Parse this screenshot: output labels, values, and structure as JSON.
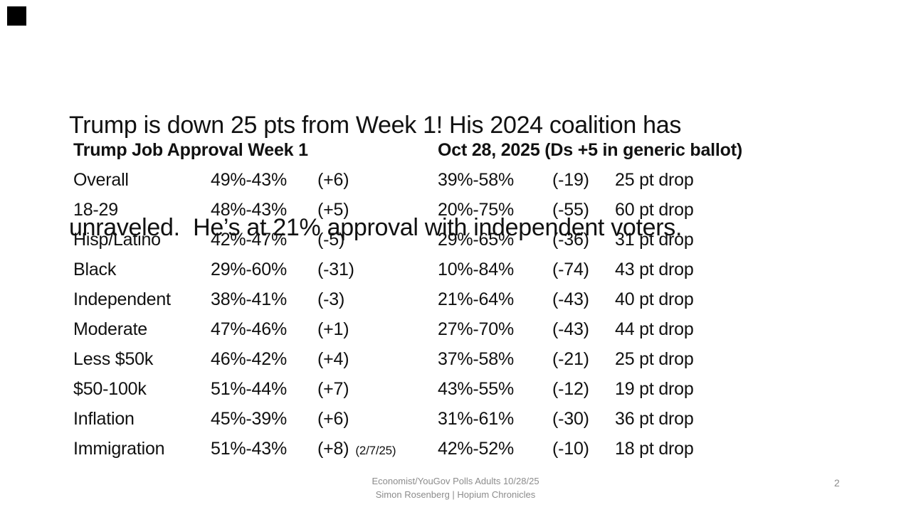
{
  "slide": {
    "title_line1": "Trump is down 25 pts from Week 1! His 2024 coalition has",
    "title_line2": "unraveled.  He’s at 21% approval with independent voters.",
    "footer_line1": "Economist/YouGov Polls Adults 10/28/25",
    "footer_line2": "Simon Rosenberg | Hopium Chronicles",
    "page_number": "2"
  },
  "table": {
    "header_left": "Trump Job Approval Week 1",
    "header_right": "Oct 28, 2025 (Ds +5 in generic ballot)",
    "rows": [
      {
        "label": "Overall",
        "week1": "49%-43%",
        "week1_margin": "(+6)",
        "week1_note": "",
        "oct28": "39%-58%",
        "oct28_margin": "(-19)",
        "drop": "25 pt drop"
      },
      {
        "label": "18-29",
        "week1": "48%-43%",
        "week1_margin": "(+5)",
        "week1_note": "",
        "oct28": "20%-75%",
        "oct28_margin": "(-55)",
        "drop": "60 pt drop"
      },
      {
        "label": "Hisp/Latino",
        "week1": "42%-47%",
        "week1_margin": "(-5)",
        "week1_note": "",
        "oct28": "29%-65%",
        "oct28_margin": "(-36)",
        "drop": "31 pt drop"
      },
      {
        "label": "Black",
        "week1": "29%-60%",
        "week1_margin": "(-31)",
        "week1_note": "",
        "oct28": "10%-84%",
        "oct28_margin": "(-74)",
        "drop": "43 pt drop"
      },
      {
        "label": "Independent",
        "week1": "38%-41%",
        "week1_margin": "(-3)",
        "week1_note": "",
        "oct28": "21%-64%",
        "oct28_margin": "(-43)",
        "drop": "40 pt drop"
      },
      {
        "label": "Moderate",
        "week1": "47%-46%",
        "week1_margin": "(+1)",
        "week1_note": "",
        "oct28": "27%-70%",
        "oct28_margin": "(-43)",
        "drop": "44 pt drop"
      },
      {
        "label": "Less $50k",
        "week1": "46%-42%",
        "week1_margin": "(+4)",
        "week1_note": "",
        "oct28": "37%-58%",
        "oct28_margin": "(-21)",
        "drop": "25 pt drop"
      },
      {
        "label": "$50-100k",
        "week1": "51%-44%",
        "week1_margin": "(+7)",
        "week1_note": "",
        "oct28": "43%-55%",
        "oct28_margin": "(-12)",
        "drop": "19 pt drop"
      },
      {
        "label": "Inflation",
        "week1": "45%-39%",
        "week1_margin": "(+6)",
        "week1_note": "",
        "oct28": "31%-61%",
        "oct28_margin": "(-30)",
        "drop": "36 pt drop"
      },
      {
        "label": "Immigration",
        "week1": "51%-43%",
        "week1_margin": "(+8)",
        "week1_note": "(2/7/25)",
        "oct28": "42%-52%",
        "oct28_margin": "(-10)",
        "drop": "18 pt drop"
      }
    ]
  },
  "colors": {
    "text": "#111111",
    "muted_footer": "#8c8c8c",
    "background": "#ffffff",
    "corner_square": "#000000"
  }
}
